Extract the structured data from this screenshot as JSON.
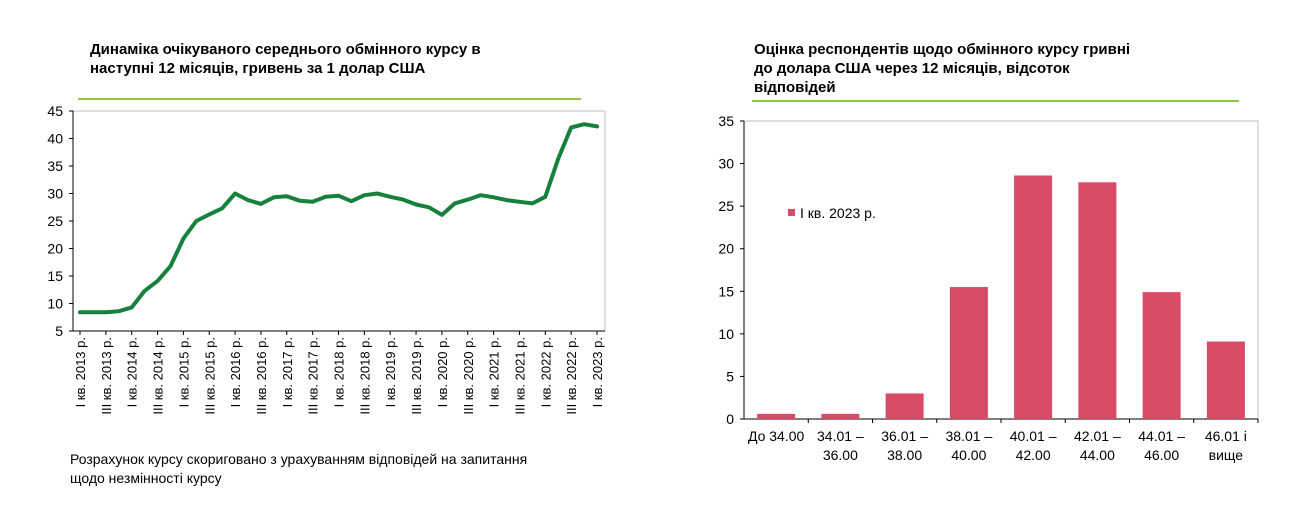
{
  "chart_data": [
    {
      "type": "line",
      "title_lines": [
        "Динаміка очікуваного середнього обмінного курсу в",
        "наступні 12 місяців, гривень за 1 долар США"
      ],
      "x": [
        "І кв. 2013 р.",
        "ІІ кв. 2013 р.",
        "ІІІ кв. 2013 р.",
        "IV кв. 2013 р.",
        "І кв. 2014 р.",
        "ІІ кв. 2014 р.",
        "ІІІ кв. 2014 р.",
        "IV кв. 2014 р.",
        "І кв. 2015 р.",
        "ІІ кв. 2015 р.",
        "ІІІ кв. 2015 р.",
        "IV кв. 2015 р.",
        "І кв. 2016 р.",
        "ІІ кв. 2016 р.",
        "ІІІ кв. 2016 р.",
        "IV кв. 2016 р.",
        "І кв. 2017 р.",
        "ІІ кв. 2017 р.",
        "ІІІ кв. 2017 р.",
        "IV кв. 2017 р.",
        "І кв. 2018 р.",
        "ІІ кв. 2018 р.",
        "ІІІ кв. 2018 р.",
        "IV кв. 2018 р.",
        "І кв. 2019 р.",
        "ІІ кв. 2019 р.",
        "ІІІ кв. 2019 р.",
        "IV кв. 2019 р.",
        "І кв. 2020 р.",
        "ІІ кв. 2020 р.",
        "ІІІ кв. 2020 р.",
        "IV кв. 2020 р.",
        "І кв. 2021 р.",
        "ІІ кв. 2021 р.",
        "ІІІ кв. 2021 р.",
        "IV кв. 2021 р.",
        "І кв. 2022 р.",
        "ІІ кв. 2022 р.",
        "ІІІ кв. 2022 р.",
        "IV кв. 2022 р.",
        "І кв. 2023 р."
      ],
      "x_tick_labels": [
        "І кв. 2013 р.",
        "ІІІ кв. 2013 р.",
        "І кв. 2014 р.",
        "ІІІ кв. 2014 р.",
        "І кв. 2015 р.",
        "ІІІ кв. 2015 р.",
        "І кв. 2016 р.",
        "ІІІ кв. 2016 р.",
        "І кв. 2017 р.",
        "ІІІ кв. 2017 р.",
        "І кв. 2018 р.",
        "ІІІ кв. 2018 р.",
        "І кв. 2019 р.",
        "ІІІ кв. 2019 р.",
        "І кв. 2020 р.",
        "ІІІ кв. 2020 р.",
        "І кв. 2021 р.",
        "ІІІ кв. 2021 р.",
        "І кв. 2022 р.",
        "ІІІ кв. 2022 р.",
        "І кв. 2023 р."
      ],
      "values": [
        8.4,
        8.4,
        8.4,
        8.6,
        9.3,
        12.3,
        14.1,
        16.8,
        21.8,
        25.0,
        26.2,
        27.3,
        30.0,
        28.8,
        28.1,
        29.3,
        29.5,
        28.7,
        28.5,
        29.4,
        29.6,
        28.6,
        29.7,
        30.0,
        29.4,
        28.9,
        28.0,
        27.5,
        26.1,
        28.2,
        28.9,
        29.7,
        29.3,
        28.8,
        28.5,
        28.2,
        29.4,
        36.3,
        42.0,
        42.6,
        42.2
      ],
      "ylim": [
        5,
        45
      ],
      "y_ticks": [
        "5",
        "10",
        "15",
        "20",
        "25",
        "30",
        "35",
        "40",
        "45"
      ],
      "note_lines": [
        "Розрахунок курсу скориговано з урахуванням відповідей на запитання",
        "щодо незмінності курсу"
      ],
      "line_color": "#16803d"
    },
    {
      "type": "bar",
      "title_lines": [
        "Оцінка респондентів щодо обмінного курсу гривні",
        "до долара США через 12 місяців, відсоток",
        "відповідей"
      ],
      "categories": [
        [
          "До 34.00"
        ],
        [
          "34.01 –",
          "36.00"
        ],
        [
          "36.01 –",
          "38.00"
        ],
        [
          "38.01 –",
          "40.00"
        ],
        [
          "40.01 –",
          "42.00"
        ],
        [
          "42.01 –",
          "44.00"
        ],
        [
          "44.01 –",
          "46.00"
        ],
        [
          "46.01 і",
          "вище"
        ]
      ],
      "series": [
        {
          "name": "І кв. 2023 р.",
          "values": [
            0.6,
            0.6,
            3.0,
            15.5,
            28.6,
            27.8,
            14.9,
            9.1
          ]
        }
      ],
      "ylim": [
        0,
        35
      ],
      "y_ticks": [
        "0",
        "5",
        "10",
        "15",
        "20",
        "25",
        "30",
        "35"
      ],
      "legend_position": "top-left",
      "bar_color": "#d94a66"
    }
  ]
}
